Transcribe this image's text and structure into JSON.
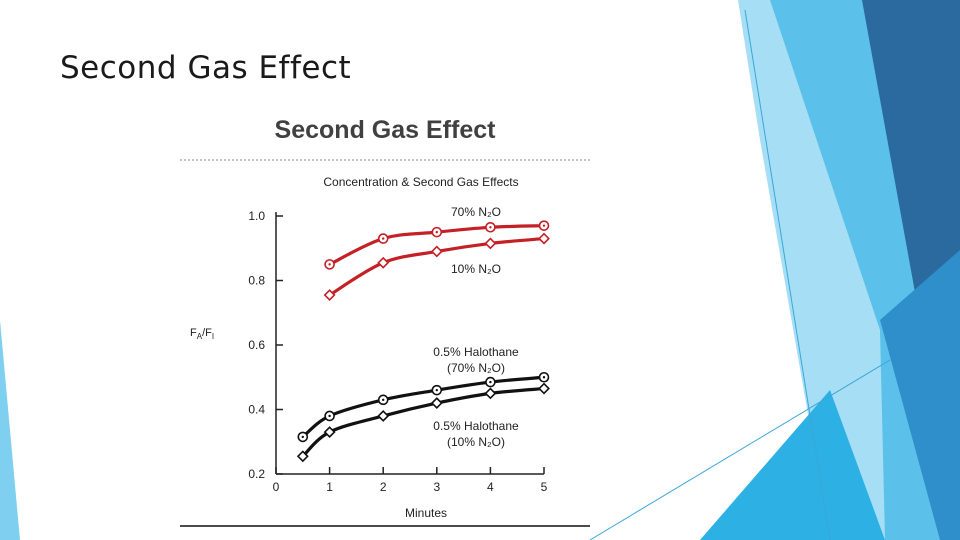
{
  "slide": {
    "title": "Second Gas Effect"
  },
  "figure": {
    "title": "Second Gas Effect"
  },
  "colors": {
    "red_series": "#c42026",
    "black_series": "#111111",
    "theme_light": "#7fd0f0",
    "theme_mid": "#3bb0e0",
    "theme_dark": "#2a6a9e"
  },
  "chart_data": {
    "type": "line",
    "title": "Concentration & Second Gas Effects",
    "xlabel": "Minutes",
    "ylabel": "FA/FI",
    "xlim": [
      0,
      5
    ],
    "ylim": [
      0.2,
      1.0
    ],
    "xticks": [
      0,
      1,
      2,
      3,
      4,
      5
    ],
    "yticks": [
      0.2,
      0.4,
      0.6,
      0.8,
      1.0
    ],
    "xtick_labels": [
      "0",
      "1",
      "2",
      "3",
      "4",
      "5"
    ],
    "ytick_labels": [
      "0.2",
      "0.4",
      "0.6",
      "0.8",
      "1.0"
    ],
    "grid": false,
    "series": [
      {
        "name": "70% N2O",
        "label_lines": [
          "70% N₂O"
        ],
        "color": "red",
        "marker": "circle",
        "x": [
          1,
          2,
          3,
          4,
          5
        ],
        "y": [
          0.85,
          0.93,
          0.95,
          0.965,
          0.97
        ]
      },
      {
        "name": "10% N2O",
        "label_lines": [
          "10% N₂O"
        ],
        "color": "red",
        "marker": "diamond",
        "x": [
          1,
          2,
          3,
          4,
          5
        ],
        "y": [
          0.755,
          0.855,
          0.89,
          0.915,
          0.93
        ]
      },
      {
        "name": "0.5% Halothane (70% N2O)",
        "label_lines": [
          "0.5% Halothane",
          "(70% N₂O)"
        ],
        "color": "black",
        "marker": "circle",
        "x": [
          0.5,
          1,
          2,
          3,
          4,
          5
        ],
        "y": [
          0.315,
          0.38,
          0.43,
          0.46,
          0.485,
          0.5
        ]
      },
      {
        "name": "0.5% Halothane (10% N2O)",
        "label_lines": [
          "0.5% Halothane",
          "(10% N₂O)"
        ],
        "color": "black",
        "marker": "diamond",
        "x": [
          0.5,
          1,
          2,
          3,
          4,
          5
        ],
        "y": [
          0.255,
          0.33,
          0.38,
          0.42,
          0.45,
          0.465
        ]
      }
    ]
  }
}
